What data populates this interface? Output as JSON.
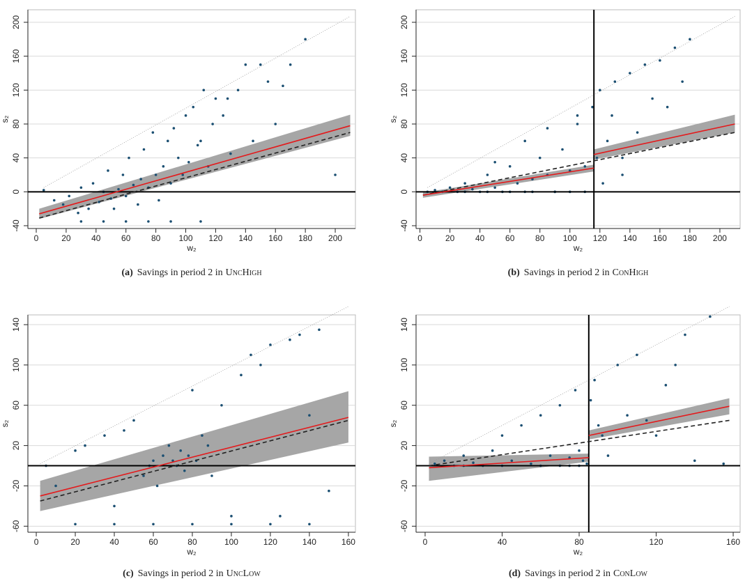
{
  "chart_data": [
    {
      "type": "scatter",
      "caption_label": "(a)",
      "caption": "Savings in period 2 in",
      "caption_treatment": "UncHigh",
      "x_label": "w₂",
      "y_label": "s₂",
      "xlim": [
        -5.6,
        213.5
      ],
      "ylim": [
        -43.3,
        214.8
      ],
      "xticks": [
        0,
        20,
        40,
        60,
        80,
        100,
        120,
        140,
        160,
        180,
        200
      ],
      "yticks": [
        -40,
        0,
        40,
        80,
        120,
        160,
        200
      ],
      "grid": true,
      "scatter": {
        "color": "#1b4f72",
        "x": [
          5,
          12,
          18,
          22,
          28,
          30,
          35,
          38,
          42,
          45,
          48,
          50,
          52,
          55,
          58,
          60,
          62,
          65,
          68,
          70,
          72,
          75,
          78,
          80,
          82,
          85,
          88,
          90,
          92,
          95,
          98,
          100,
          102,
          105,
          108,
          110,
          112,
          115,
          118,
          120,
          125,
          128,
          130,
          135,
          140,
          145,
          150,
          155,
          160,
          165,
          170,
          180,
          200,
          30,
          45,
          60,
          75,
          90,
          110
        ],
        "y": [
          2,
          -10,
          -15,
          -5,
          -25,
          5,
          -20,
          10,
          -12,
          0,
          25,
          -8,
          -20,
          3,
          20,
          -5,
          40,
          8,
          -15,
          15,
          50,
          5,
          70,
          20,
          -10,
          30,
          60,
          10,
          75,
          40,
          20,
          90,
          35,
          100,
          55,
          60,
          120,
          30,
          80,
          110,
          90,
          110,
          45,
          120,
          150,
          60,
          150,
          130,
          80,
          125,
          150,
          180,
          20,
          -35,
          -35,
          -35,
          -35,
          -35,
          -35
        ]
      },
      "fit": [
        {
          "color": "#e41a1c",
          "band_color": "#a6a6a6",
          "x": [
            2,
            210
          ],
          "y": [
            -26,
            78
          ],
          "lower": [
            -32,
            66
          ],
          "upper": [
            -20,
            91
          ]
        }
      ],
      "prediction": {
        "color": "#222222",
        "x": [
          2,
          210
        ],
        "y": [
          -31,
          70
        ]
      },
      "diagonal": {
        "color": "#999999",
        "x": [
          5,
          210
        ],
        "y": [
          5,
          207
        ]
      },
      "hline": 0
    },
    {
      "type": "scatter",
      "caption_label": "(b)",
      "caption": "Savings in period 2 in",
      "caption_treatment": "ConHigh",
      "x_label": "w₂",
      "y_label": "s₂",
      "xlim": [
        -2.6,
        213.5
      ],
      "ylim": [
        -43.3,
        214.8
      ],
      "xticks": [
        0,
        20,
        40,
        60,
        80,
        100,
        120,
        140,
        160,
        180,
        200
      ],
      "yticks": [
        -40,
        0,
        40,
        80,
        120,
        160,
        200
      ],
      "grid": true,
      "scatter": {
        "color": "#1b4f72",
        "x": [
          5,
          10,
          15,
          20,
          25,
          30,
          35,
          40,
          45,
          50,
          55,
          60,
          65,
          70,
          75,
          80,
          85,
          90,
          95,
          100,
          105,
          110,
          115,
          30,
          45,
          60,
          75,
          90,
          100,
          110,
          50,
          70,
          85,
          105,
          120,
          125,
          130,
          135,
          140,
          145,
          150,
          155,
          160,
          165,
          170,
          175,
          180,
          118,
          122,
          128,
          135
        ],
        "y": [
          0,
          2,
          0,
          5,
          0,
          10,
          3,
          0,
          20,
          5,
          0,
          30,
          10,
          0,
          15,
          40,
          20,
          0,
          50,
          25,
          80,
          30,
          100,
          0,
          0,
          0,
          0,
          0,
          0,
          0,
          35,
          60,
          75,
          90,
          120,
          60,
          130,
          40,
          140,
          70,
          150,
          110,
          155,
          100,
          170,
          130,
          180,
          40,
          10,
          90,
          20
        ]
      },
      "fit": [
        {
          "color": "#e41a1c",
          "band_color": "#a6a6a6",
          "x": [
            2,
            116
          ],
          "y": [
            -4,
            28
          ],
          "lower": [
            -7,
            24
          ],
          "upper": [
            -1,
            32
          ]
        },
        {
          "color": "#e41a1c",
          "band_color": "#a6a6a6",
          "x": [
            116,
            210
          ],
          "y": [
            44,
            80
          ],
          "lower": [
            38,
            70
          ],
          "upper": [
            50,
            91
          ]
        }
      ],
      "prediction": {
        "color": "#222222",
        "x": [
          2,
          210
        ],
        "y": [
          -4,
          70
        ]
      },
      "diagonal": {
        "color": "#999999",
        "x": [
          5,
          210
        ],
        "y": [
          5,
          207
        ]
      },
      "hline": 0,
      "vline": 116
    },
    {
      "type": "scatter",
      "caption_label": "(c)",
      "caption": "Savings in period 2 in",
      "caption_treatment": "UncLow",
      "x_label": "w₂",
      "y_label": "s₂",
      "xlim": [
        -4.3,
        163.6
      ],
      "ylim": [
        -66,
        149.7
      ],
      "xticks": [
        0,
        20,
        40,
        60,
        80,
        100,
        120,
        140,
        160
      ],
      "yticks": [
        -60,
        -20,
        20,
        60,
        100,
        140
      ],
      "grid": true,
      "scatter": {
        "color": "#1b4f72",
        "x": [
          5,
          10,
          20,
          25,
          35,
          40,
          45,
          50,
          55,
          58,
          60,
          62,
          65,
          68,
          70,
          72,
          74,
          76,
          78,
          80,
          82,
          85,
          88,
          90,
          95,
          100,
          105,
          110,
          115,
          120,
          125,
          130,
          135,
          140,
          145,
          150,
          20,
          40,
          60,
          80,
          100,
          120,
          140
        ],
        "y": [
          0,
          -20,
          15,
          20,
          30,
          -40,
          35,
          45,
          -10,
          0,
          5,
          -20,
          10,
          20,
          5,
          0,
          15,
          -5,
          10,
          75,
          5,
          30,
          20,
          -10,
          60,
          -50,
          90,
          110,
          100,
          120,
          -50,
          125,
          130,
          50,
          135,
          -25,
          -58,
          -58,
          -58,
          -58,
          -58,
          -58,
          -58
        ]
      },
      "fit": [
        {
          "color": "#e41a1c",
          "band_color": "#a6a6a6",
          "x": [
            2,
            160
          ],
          "y": [
            -30,
            48
          ],
          "lower": [
            -45,
            23
          ],
          "upper": [
            -15,
            74
          ]
        }
      ],
      "prediction": {
        "color": "#222222",
        "x": [
          2,
          160
        ],
        "y": [
          -35,
          45
        ]
      },
      "diagonal": {
        "color": "#999999",
        "x": [
          2,
          160
        ],
        "y": [
          2,
          158
        ]
      },
      "hline": 0
    },
    {
      "type": "scatter",
      "caption_label": "(d)",
      "caption": "Savings in period 2 in",
      "caption_treatment": "ConLow",
      "x_label": "w₂",
      "y_label": "s₂",
      "xlim": [
        -4.7,
        163.6
      ],
      "ylim": [
        -66,
        149.7
      ],
      "xticks": [
        0,
        40,
        80,
        120,
        160
      ],
      "yticks": [
        -60,
        -20,
        20,
        60,
        100,
        140
      ],
      "grid": true,
      "scatter": {
        "color": "#1b4f72",
        "x": [
          5,
          10,
          15,
          20,
          25,
          30,
          35,
          40,
          45,
          50,
          55,
          60,
          65,
          70,
          75,
          78,
          80,
          82,
          84,
          86,
          88,
          90,
          92,
          95,
          100,
          105,
          110,
          115,
          120,
          125,
          130,
          135,
          140,
          148,
          155,
          20,
          40,
          60,
          70,
          75,
          80
        ],
        "y": [
          2,
          5,
          0,
          10,
          3,
          0,
          15,
          30,
          5,
          40,
          2,
          50,
          10,
          60,
          8,
          75,
          15,
          5,
          2,
          65,
          85,
          40,
          30,
          10,
          100,
          50,
          110,
          45,
          30,
          80,
          100,
          130,
          5,
          148,
          2,
          0,
          0,
          0,
          0,
          0,
          0
        ]
      },
      "fit": [
        {
          "color": "#e41a1c",
          "band_color": "#a6a6a6",
          "x": [
            2,
            85
          ],
          "y": [
            -2,
            8
          ],
          "lower": [
            -15,
            4
          ],
          "upper": [
            9,
            12
          ]
        },
        {
          "color": "#e41a1c",
          "band_color": "#a6a6a6",
          "x": [
            85,
            158
          ],
          "y": [
            30,
            59
          ],
          "lower": [
            26,
            51
          ],
          "upper": [
            35,
            67
          ]
        }
      ],
      "prediction": {
        "color": "#222222",
        "x": [
          2,
          158
        ],
        "y": [
          0,
          45
        ]
      },
      "diagonal": {
        "color": "#999999",
        "x": [
          2,
          158
        ],
        "y": [
          2,
          158
        ]
      },
      "hline": 0,
      "vline": 85
    }
  ]
}
